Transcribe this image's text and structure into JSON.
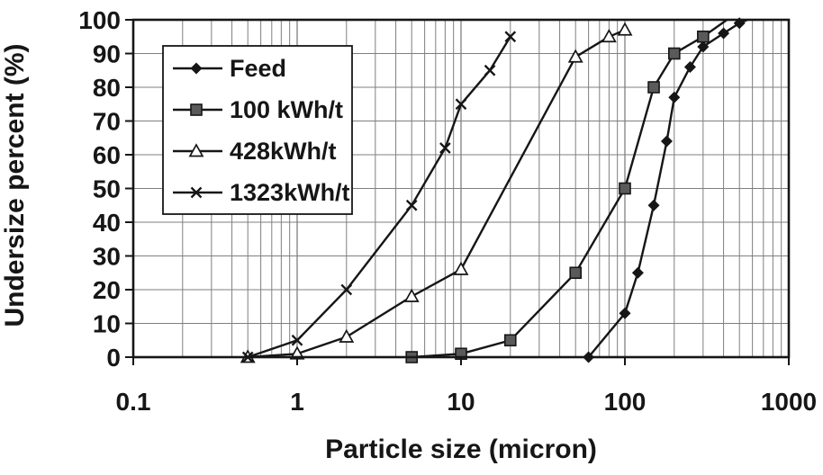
{
  "figure": {
    "background": "#ffffff",
    "ink": "#161616",
    "grid_color": "#7f7f7f",
    "square_fill": "#5a5a5a",
    "legend_border": "#161616"
  },
  "chart_data": {
    "type": "line",
    "title": "",
    "xlabel": "Particle size (micron)",
    "ylabel": "Undersize percent (%)",
    "x_scale": "log",
    "xlim": [
      0.1,
      1000
    ],
    "ylim": [
      0,
      100
    ],
    "x_ticks": [
      "0.1",
      "1",
      "10",
      "100",
      "1000"
    ],
    "y_ticks": [
      "0",
      "10",
      "20",
      "30",
      "40",
      "50",
      "60",
      "70",
      "80",
      "90",
      "100"
    ],
    "grid": "on (log minor vertical gridlines, horizontal gridlines every 10%)",
    "legend_position": "top-left inside plot area",
    "series": [
      {
        "name": "Feed",
        "marker": "diamond-filled",
        "points": [
          [
            60,
            0
          ],
          [
            100,
            13
          ],
          [
            120,
            25
          ],
          [
            150,
            45
          ],
          [
            180,
            64
          ],
          [
            200,
            77
          ],
          [
            250,
            86
          ],
          [
            300,
            92
          ],
          [
            400,
            96
          ],
          [
            500,
            99
          ]
        ],
        "tail": [
          560,
          100
        ]
      },
      {
        "name": "100 kWh/t",
        "marker": "square-filled",
        "points": [
          [
            5,
            0
          ],
          [
            10,
            1
          ],
          [
            20,
            5
          ],
          [
            50,
            25
          ],
          [
            100,
            50
          ],
          [
            150,
            80
          ],
          [
            200,
            90
          ],
          [
            300,
            95
          ]
        ],
        "tail": [
          420,
          100
        ]
      },
      {
        "name": "428kWh/t",
        "marker": "triangle-open",
        "points": [
          [
            0.5,
            0
          ],
          [
            1,
            1
          ],
          [
            2,
            6
          ],
          [
            5,
            18
          ],
          [
            10,
            26
          ],
          [
            50,
            89
          ],
          [
            80,
            95
          ],
          [
            100,
            97
          ]
        ]
      },
      {
        "name": "1323kWh/t",
        "marker": "x-cross",
        "points": [
          [
            0.5,
            0
          ],
          [
            1,
            5
          ],
          [
            2,
            20
          ],
          [
            5,
            45
          ],
          [
            8,
            62
          ],
          [
            10,
            75
          ],
          [
            15,
            85
          ],
          [
            20,
            95
          ]
        ]
      }
    ]
  }
}
